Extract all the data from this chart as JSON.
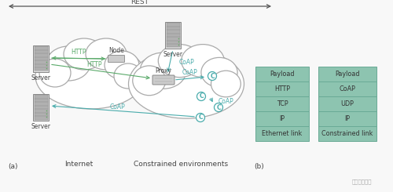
{
  "bg_color": "#f8f8f8",
  "internet_label": "Internet",
  "constrained_label": "Constrained environments",
  "part_a_label": "(a)",
  "part_b_label": "(b)",
  "stack1_labels": [
    "Payload",
    "HTTP",
    "TCP",
    "IP",
    "Ethernet link"
  ],
  "stack2_labels": [
    "Payload",
    "CoAP",
    "UDP",
    "IP",
    "Constrained link"
  ],
  "stack_color": "#8dc4b0",
  "stack_border": "#6aaa96",
  "stack_text_color": "#333333",
  "http_color": "#5aaa6a",
  "coap_color": "#4aacac",
  "cloud_face": "#ffffff",
  "cloud_edge": "#aaaaaa",
  "server_light": "#d8d8d8",
  "server_dark": "#888888",
  "server_mid": "#aaaaaa",
  "rest_color": "#555555",
  "label_color": "#444444"
}
